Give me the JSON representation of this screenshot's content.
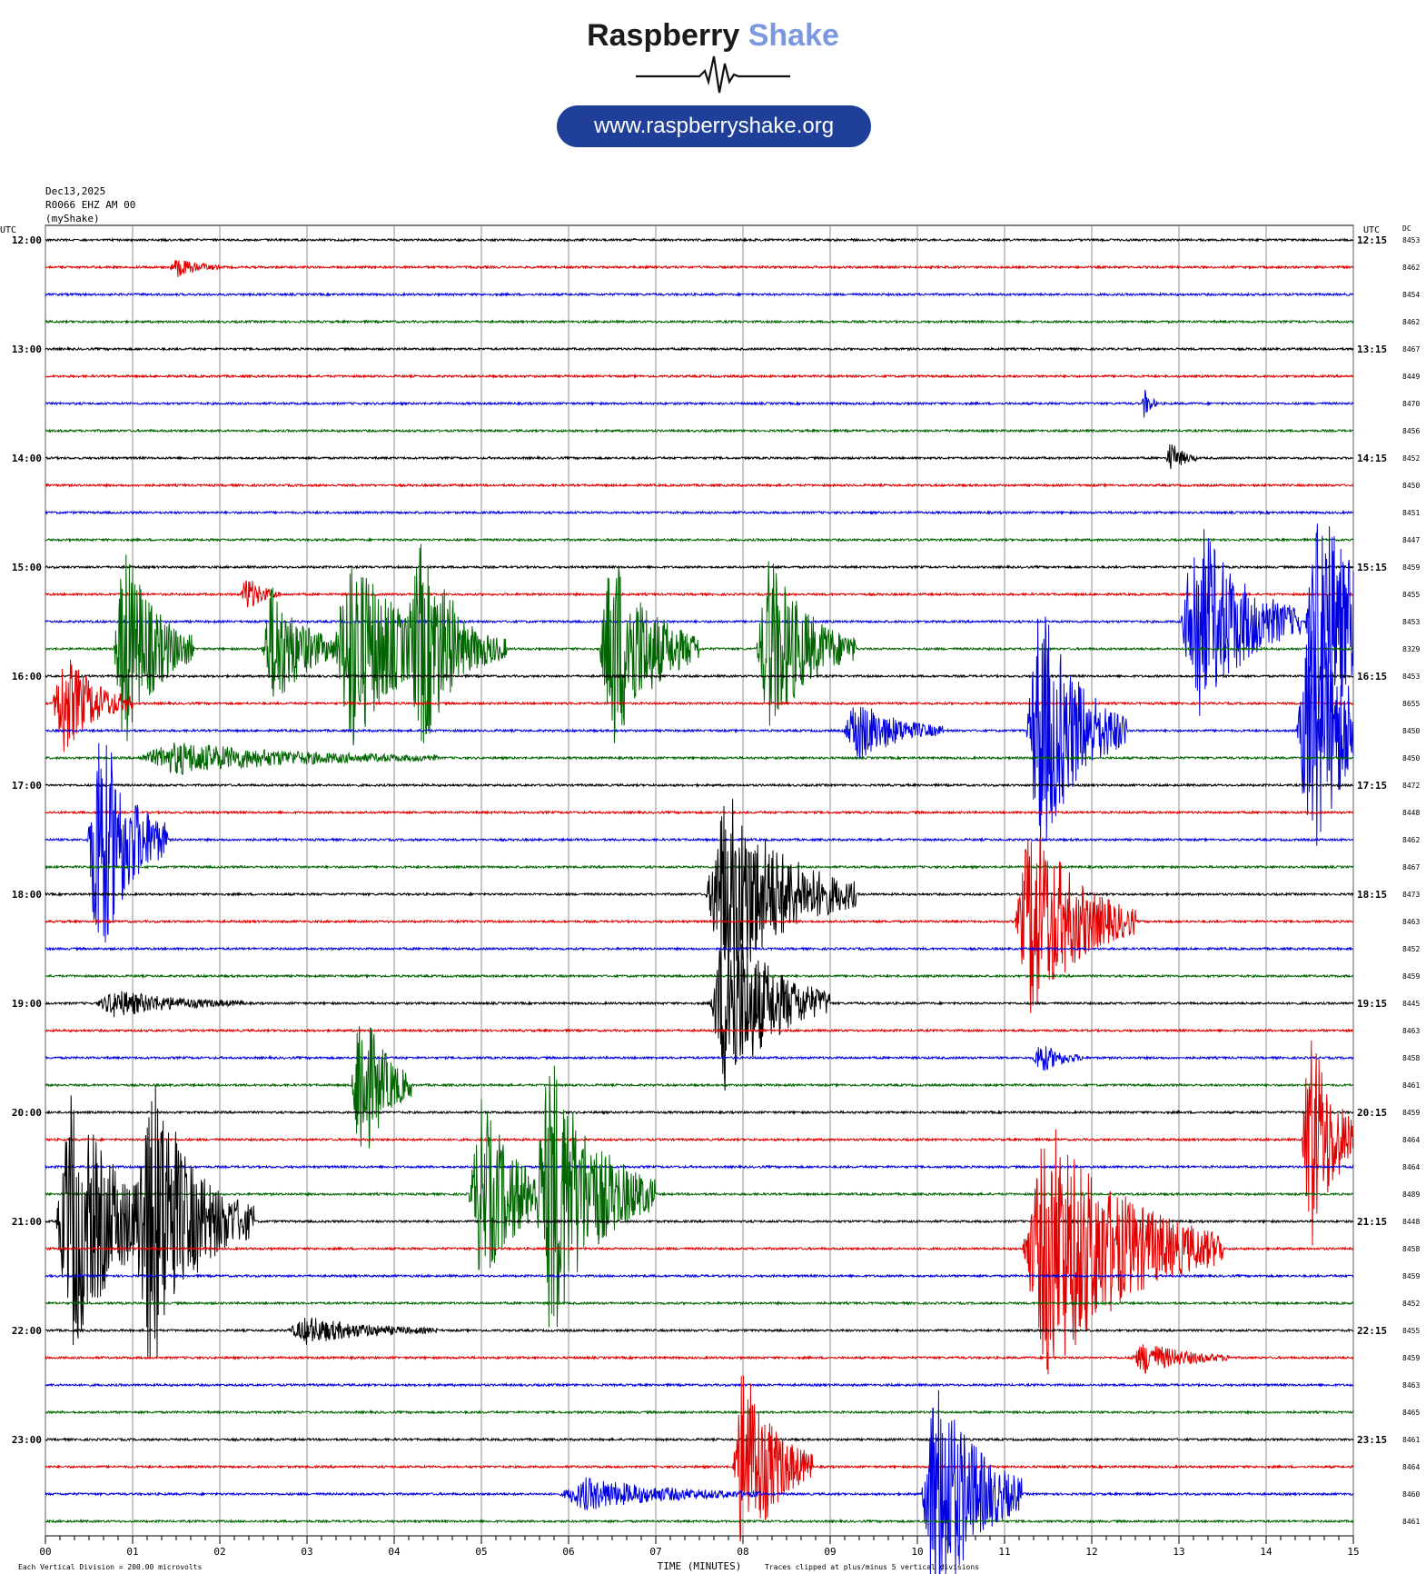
{
  "brand": {
    "name_part1": "Raspberry",
    "name_part2": "Shake",
    "url": "www.raspberryshake.org",
    "name_color": "#1a1a1a",
    "accent_color": "#7a97e0",
    "url_bg_color": "#1f3f99"
  },
  "header": {
    "date": "Dec13,2025",
    "station": "R0066 EHZ AM 00",
    "source": "(myShake)"
  },
  "chart_data": {
    "type": "line",
    "subtype": "helicorder",
    "left_axis_label": "UTC",
    "right_axis_label": "UTC",
    "dc_label": "DC",
    "xlabel": "TIME (MINUTES)",
    "xlim": [
      0,
      15
    ],
    "x_ticks": [
      "00",
      "01",
      "02",
      "03",
      "04",
      "05",
      "06",
      "07",
      "08",
      "09",
      "10",
      "11",
      "12",
      "13",
      "14",
      "15"
    ],
    "trace_colors": [
      "#000000",
      "#e00000",
      "#0000e0",
      "#006400"
    ],
    "left_hour_labels": [
      "12:00",
      "13:00",
      "14:00",
      "15:00",
      "16:00",
      "17:00",
      "18:00",
      "19:00",
      "20:00",
      "21:00",
      "22:00",
      "23:00"
    ],
    "right_hour_labels": [
      "12:15",
      "13:15",
      "14:15",
      "15:15",
      "16:15",
      "17:15",
      "18:15",
      "19:15",
      "20:15",
      "21:15",
      "22:15",
      "23:15"
    ],
    "dc_values": [
      "8453",
      "8462",
      "8454",
      "8462",
      "8467",
      "8449",
      "8470",
      "8456",
      "8452",
      "8450",
      "8451",
      "8447",
      "8459",
      "8455",
      "8453",
      "8329",
      "8453",
      "8655",
      "8450",
      "8450",
      "8472",
      "8448",
      "8462",
      "8467",
      "8473",
      "8463",
      "8452",
      "8459",
      "8445",
      "8463",
      "8458",
      "8461",
      "8459",
      "8464",
      "8464",
      "8489",
      "8448",
      "8458",
      "8459",
      "8452",
      "8455",
      "8459",
      "8463",
      "8465",
      "8461",
      "8464",
      "8460",
      "8461"
    ],
    "events": [
      {
        "row": 1,
        "minute": 1.5,
        "amplitude": 0.35,
        "duration": 0.5
      },
      {
        "row": 6,
        "minute": 12.6,
        "amplitude": 0.6,
        "duration": 0.15
      },
      {
        "row": 8,
        "minute": 12.9,
        "amplitude": 0.6,
        "duration": 0.3
      },
      {
        "row": 13,
        "minute": 2.3,
        "amplitude": 0.7,
        "duration": 0.4
      },
      {
        "row": 14,
        "minute": 13.2,
        "amplitude": 4.0,
        "duration": 1.2
      },
      {
        "row": 14,
        "minute": 14.6,
        "amplitude": 5.0,
        "duration": 1.0
      },
      {
        "row": 15,
        "minute": 0.9,
        "amplitude": 4.0,
        "duration": 0.8
      },
      {
        "row": 15,
        "minute": 2.6,
        "amplitude": 2.5,
        "duration": 0.8
      },
      {
        "row": 15,
        "minute": 3.5,
        "amplitude": 4.0,
        "duration": 1.2
      },
      {
        "row": 15,
        "minute": 4.3,
        "amplitude": 3.0,
        "duration": 1.0
      },
      {
        "row": 15,
        "minute": 6.5,
        "amplitude": 4.0,
        "duration": 1.0
      },
      {
        "row": 15,
        "minute": 8.3,
        "amplitude": 3.5,
        "duration": 1.0
      },
      {
        "row": 17,
        "minute": 0.2,
        "amplitude": 2.0,
        "duration": 0.8
      },
      {
        "row": 18,
        "minute": 9.3,
        "amplitude": 1.2,
        "duration": 1.0
      },
      {
        "row": 18,
        "minute": 11.4,
        "amplitude": 5.0,
        "duration": 1.0
      },
      {
        "row": 18,
        "minute": 14.5,
        "amplitude": 5.0,
        "duration": 1.0
      },
      {
        "row": 19,
        "minute": 1.5,
        "amplitude": 0.6,
        "duration": 3.0
      },
      {
        "row": 22,
        "minute": 0.6,
        "amplitude": 5.0,
        "duration": 0.8
      },
      {
        "row": 24,
        "minute": 7.8,
        "amplitude": 4.0,
        "duration": 1.5
      },
      {
        "row": 25,
        "minute": 11.3,
        "amplitude": 4.0,
        "duration": 1.2
      },
      {
        "row": 28,
        "minute": 7.8,
        "amplitude": 3.5,
        "duration": 1.2
      },
      {
        "row": 28,
        "minute": 0.8,
        "amplitude": 0.5,
        "duration": 1.5
      },
      {
        "row": 30,
        "minute": 11.4,
        "amplitude": 0.6,
        "duration": 0.5
      },
      {
        "row": 31,
        "minute": 3.6,
        "amplitude": 3.5,
        "duration": 0.6
      },
      {
        "row": 33,
        "minute": 14.5,
        "amplitude": 4.5,
        "duration": 0.6
      },
      {
        "row": 35,
        "minute": 5.0,
        "amplitude": 3.5,
        "duration": 1.0
      },
      {
        "row": 35,
        "minute": 5.8,
        "amplitude": 5.0,
        "duration": 1.2
      },
      {
        "row": 36,
        "minute": 0.3,
        "amplitude": 5.0,
        "duration": 1.2
      },
      {
        "row": 36,
        "minute": 1.2,
        "amplitude": 5.0,
        "duration": 1.2
      },
      {
        "row": 37,
        "minute": 11.5,
        "amplitude": 5.0,
        "duration": 2.0
      },
      {
        "row": 40,
        "minute": 3.0,
        "amplitude": 0.5,
        "duration": 1.5
      },
      {
        "row": 41,
        "minute": 12.6,
        "amplitude": 0.6,
        "duration": 1.0
      },
      {
        "row": 45,
        "minute": 8.0,
        "amplitude": 4.0,
        "duration": 0.8
      },
      {
        "row": 46,
        "minute": 10.2,
        "amplitude": 5.0,
        "duration": 1.0
      },
      {
        "row": 46,
        "minute": 6.2,
        "amplitude": 0.6,
        "duration": 2.0
      }
    ]
  },
  "footer": {
    "scale_text": "Each Vertical Division =  200.00 microvolts",
    "clip_text": "Traces clipped at plus/minus 5 vertical divisions"
  }
}
